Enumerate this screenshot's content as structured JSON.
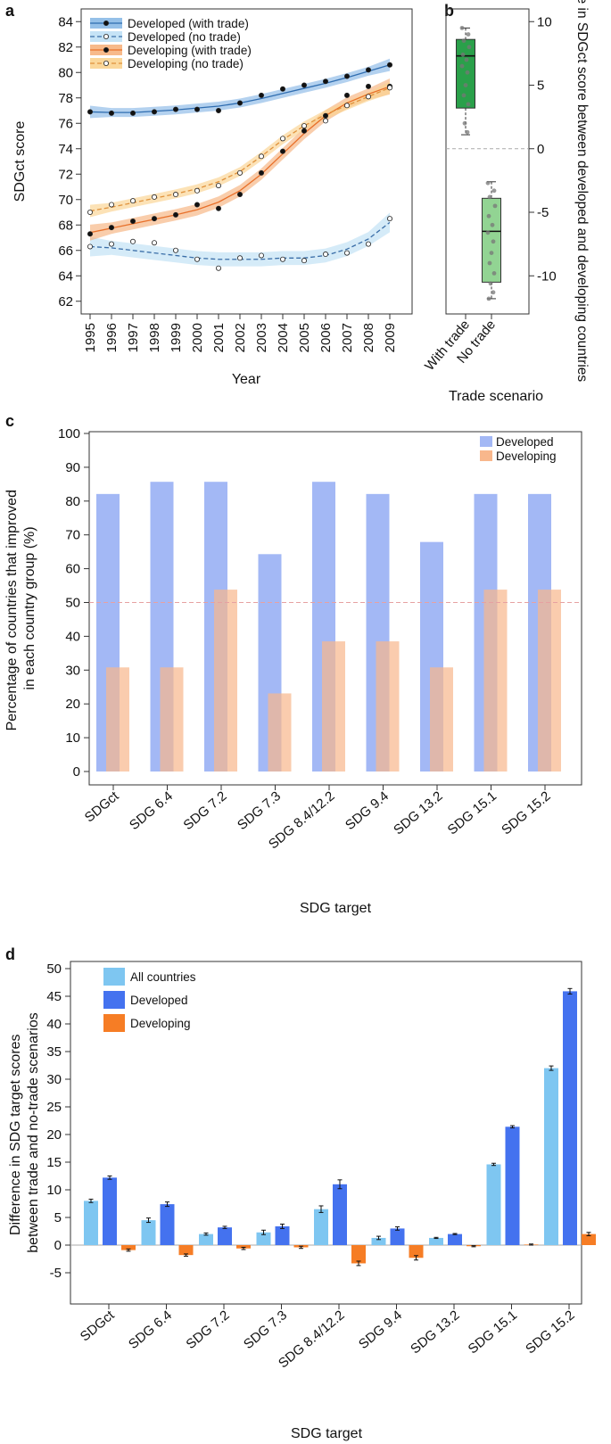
{
  "panel_labels": {
    "a": "a",
    "b": "b",
    "c": "c",
    "d": "d"
  },
  "chart_data": [
    {
      "panel": "a",
      "type": "line",
      "title": "",
      "xlabel": "Year",
      "ylabel": "SDGct score",
      "ylim": [
        61,
        85
      ],
      "yticks": [
        62,
        64,
        66,
        68,
        70,
        72,
        74,
        76,
        78,
        80,
        82,
        84
      ],
      "x": [
        "1995",
        "1996",
        "1997",
        "1998",
        "1999",
        "2000",
        "2001",
        "2002",
        "2003",
        "2004",
        "2005",
        "2006",
        "2007",
        "2008",
        "2009"
      ],
      "series": [
        {
          "name": "Developed (with trade)",
          "color": "#2f6db0",
          "band": "#8ab9e6",
          "dashed": false,
          "filled": true,
          "values": [
            76.9,
            76.8,
            76.8,
            76.9,
            77.1,
            77.1,
            77.0,
            77.6,
            78.2,
            78.7,
            79.0,
            79.3,
            79.7,
            80.2,
            80.6
          ],
          "trend": [
            76.9,
            76.85,
            76.85,
            76.95,
            77.05,
            77.2,
            77.35,
            77.6,
            77.95,
            78.35,
            78.75,
            79.15,
            79.6,
            80.1,
            80.6
          ]
        },
        {
          "name": "Developed (no trade)",
          "color": "#3a6ea8",
          "band": "#bfe0f5",
          "dashed": true,
          "filled": false,
          "values": [
            66.3,
            66.5,
            66.7,
            66.6,
            66.0,
            65.3,
            64.6,
            65.4,
            65.6,
            65.3,
            65.2,
            65.7,
            65.8,
            66.5,
            68.5
          ],
          "trend": [
            66.3,
            66.2,
            66.0,
            65.8,
            65.6,
            65.4,
            65.3,
            65.3,
            65.3,
            65.4,
            65.4,
            65.6,
            66.1,
            66.9,
            68.2
          ]
        },
        {
          "name": "Developing (with trade)",
          "color": "#e8702a",
          "band": "#f6b27e",
          "dashed": false,
          "filled": true,
          "values": [
            67.3,
            67.8,
            68.3,
            68.5,
            68.8,
            69.6,
            69.3,
            70.4,
            72.1,
            73.8,
            75.4,
            76.6,
            78.2,
            78.9,
            78.9
          ],
          "trend": [
            67.4,
            67.75,
            68.1,
            68.45,
            68.8,
            69.2,
            69.8,
            70.7,
            72.0,
            73.6,
            75.2,
            76.6,
            77.6,
            78.3,
            78.9
          ]
        },
        {
          "name": "Developing (no trade)",
          "color": "#e0923c",
          "band": "#fbd38f",
          "dashed": true,
          "filled": false,
          "values": [
            69.0,
            69.6,
            69.9,
            70.2,
            70.4,
            70.7,
            71.1,
            72.1,
            73.4,
            74.8,
            75.8,
            76.2,
            77.4,
            78.1,
            78.8
          ],
          "trend": [
            69.1,
            69.4,
            69.75,
            70.1,
            70.45,
            70.85,
            71.4,
            72.2,
            73.4,
            74.7,
            75.8,
            76.7,
            77.4,
            78.1,
            78.8
          ]
        }
      ]
    },
    {
      "panel": "b",
      "type": "box",
      "xlabel": "Trade scenario",
      "ylabel": "Difference in SDGct score between developed and developing countries",
      "ylim": [
        -13,
        11
      ],
      "yticks": [
        10,
        5,
        0,
        -5,
        -10
      ],
      "categories": [
        "With trade",
        "No trade"
      ],
      "boxes": [
        {
          "name": "With trade",
          "color": "#2aa04a",
          "min": 1.1,
          "q1": 3.2,
          "median": 7.3,
          "q3": 8.6,
          "max": 9.5,
          "points": [
            9.5,
            9.0,
            8.5,
            8.0,
            7.4,
            7.0,
            6.5,
            6.0,
            5.0,
            4.2,
            3.5,
            2.0,
            1.3
          ]
        },
        {
          "name": "No trade",
          "color": "#92d493",
          "min": -11.8,
          "q1": -10.5,
          "median": -6.5,
          "q3": -3.9,
          "max": -2.6,
          "points": [
            -2.7,
            -3.3,
            -3.8,
            -4.5,
            -5.3,
            -6.0,
            -6.6,
            -7.3,
            -8.2,
            -9.0,
            -9.8,
            -10.6,
            -11.3,
            -11.8
          ]
        }
      ]
    },
    {
      "panel": "c",
      "type": "bar",
      "xlabel": "SDG target",
      "ylabel": "Percentage of countries that improved in each country group (%)",
      "ylim": [
        0,
        100
      ],
      "yticks": [
        0,
        10,
        20,
        30,
        40,
        50,
        60,
        70,
        80,
        90,
        100
      ],
      "reference_line": 50,
      "categories": [
        "SDGct",
        "SDG 6.4",
        "SDG 7.2",
        "SDG 7.3",
        "SDG 8.4/12.2",
        "SDG 9.4",
        "SDG 13.2",
        "SDG 15.1",
        "SDG 15.2"
      ],
      "series": [
        {
          "name": "Developed",
          "color": "#a3b8f5",
          "values": [
            82.1,
            85.7,
            85.7,
            64.3,
            85.7,
            82.1,
            67.9,
            82.1,
            82.1
          ]
        },
        {
          "name": "Developing",
          "color": "#f8b78c",
          "values": [
            30.8,
            30.8,
            53.8,
            23.1,
            38.5,
            38.5,
            30.8,
            53.8,
            53.8
          ]
        }
      ]
    },
    {
      "panel": "d",
      "type": "bar",
      "xlabel": "SDG target",
      "ylabel": "Difference in SDG target scores between trade and no-trade scenarios",
      "ylim": [
        -8,
        52
      ],
      "yticks": [
        -5,
        0,
        5,
        10,
        15,
        20,
        25,
        30,
        35,
        40,
        45,
        50
      ],
      "categories": [
        "SDGct",
        "SDG 6.4",
        "SDG 7.2",
        "SDG 7.3",
        "SDG 8.4/12.2",
        "SDG 9.4",
        "SDG 13.2",
        "SDG 15.1",
        "SDG 15.2"
      ],
      "series": [
        {
          "name": "All countries",
          "color": "#7ec6f1",
          "values": [
            8.0,
            4.5,
            2.0,
            2.3,
            6.5,
            1.3,
            1.3,
            14.6,
            32.0
          ],
          "errors": [
            0.3,
            0.4,
            0.2,
            0.4,
            0.6,
            0.3,
            0.1,
            0.2,
            0.4
          ]
        },
        {
          "name": "Developed",
          "color": "#4472ef",
          "values": [
            12.2,
            7.4,
            3.2,
            3.4,
            11.0,
            3.0,
            2.0,
            21.4,
            45.9
          ],
          "errors": [
            0.3,
            0.4,
            0.2,
            0.4,
            0.8,
            0.3,
            0.1,
            0.2,
            0.5
          ]
        },
        {
          "name": "Developing",
          "color": "#f67d25",
          "values": [
            -0.9,
            -1.8,
            -0.6,
            -0.4,
            -3.3,
            -2.3,
            -0.2,
            0.1,
            2.0
          ],
          "errors": [
            0.2,
            0.2,
            0.2,
            0.2,
            0.4,
            0.4,
            0.1,
            0.1,
            0.3
          ]
        }
      ]
    }
  ]
}
